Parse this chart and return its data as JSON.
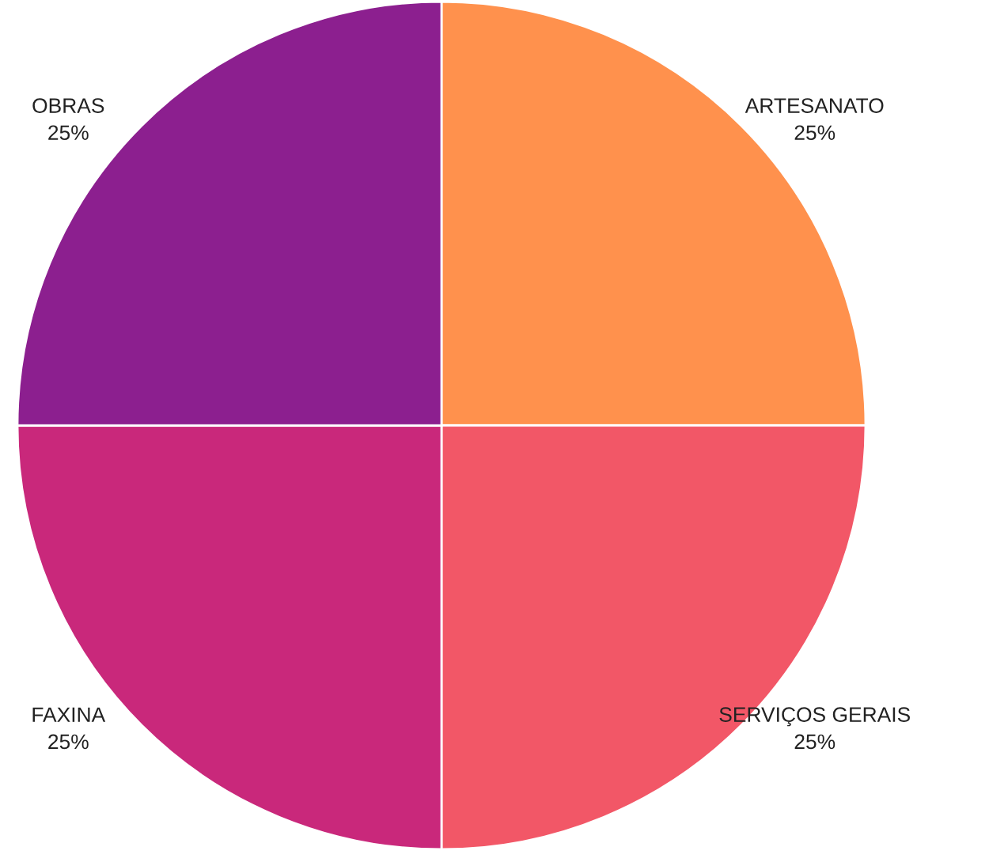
{
  "chart_data": {
    "type": "pie",
    "categories": [
      "ARTESANATO",
      "SERVIÇOS GERAIS",
      "FAXINA",
      "OBRAS"
    ],
    "values": [
      25,
      25,
      25,
      25
    ],
    "value_labels": [
      "25%",
      "25%",
      "25%",
      "25%"
    ],
    "colors": [
      "#ff914d",
      "#f25767",
      "#c9287b",
      "#8c1f8f"
    ]
  }
}
